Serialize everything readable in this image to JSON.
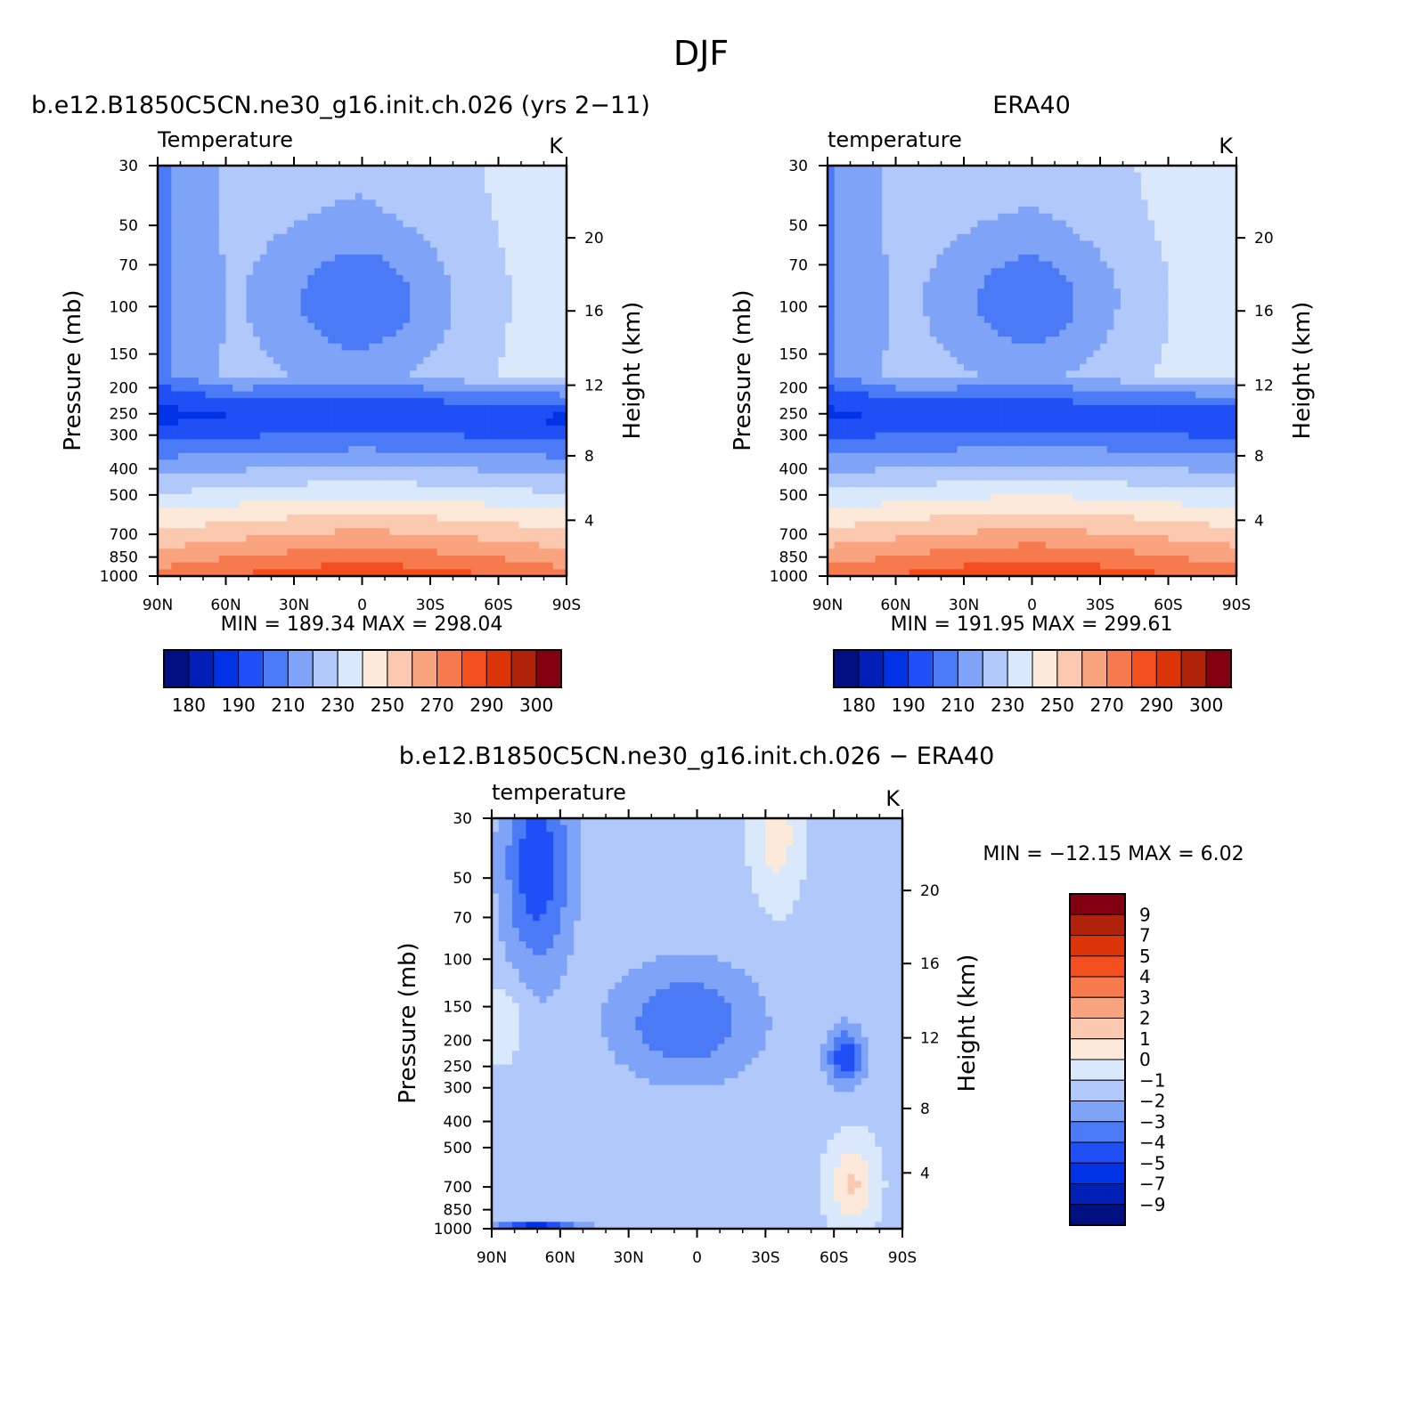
{
  "page": {
    "title": "DJF"
  },
  "legend": {
    "abs_colors": [
      "#000f82",
      "#0020b5",
      "#0032e6",
      "#1f4ff5",
      "#4a7af5",
      "#7fa4f7",
      "#b0c8fa",
      "#d9e9fb",
      "#fde9d9",
      "#fbc8b0",
      "#f9a47f",
      "#f77a4f",
      "#f24e1f",
      "#db3409",
      "#b0220a",
      "#82000f"
    ],
    "abs_labels": [
      "180",
      "190",
      "210",
      "230",
      "250",
      "270",
      "290",
      "300"
    ],
    "diff_colors": [
      "#000f82",
      "#0020b5",
      "#0032e6",
      "#1f4ff5",
      "#4a7af5",
      "#7fa4f7",
      "#b0c8fa",
      "#d9e9fb",
      "#fde9d9",
      "#fbc8b0",
      "#f9a47f",
      "#f77a4f",
      "#f24e1f",
      "#db3409",
      "#b0220a",
      "#82000f"
    ],
    "diff_labels": [
      "9",
      "7",
      "5",
      "4",
      "3",
      "2",
      "1",
      "0",
      "−1",
      "−2",
      "−3",
      "−4",
      "−5",
      "−7",
      "−9"
    ]
  },
  "chart_data": [
    {
      "type": "heatmap",
      "title": "b.e12.B1850C5CN.ne30_g16.init.ch.026 (yrs 2−11)",
      "subtitle_left": "Temperature",
      "subtitle_right": "K",
      "ylabel": "Pressure  (mb)",
      "y2label": "Height  (km)",
      "x_ticks": [
        "90N",
        "60N",
        "30N",
        "0",
        "30S",
        "60S",
        "90S"
      ],
      "y_ticks": [
        "30",
        "50",
        "70",
        "100",
        "150",
        "200",
        "250",
        "300",
        "400",
        "500",
        "700",
        "850",
        "1000"
      ],
      "y2_ticks": [
        "20",
        "16",
        "12",
        "8",
        "4"
      ],
      "stats": "MIN  =  189.34   MAX  =  298.04",
      "min": 189.34,
      "max": 298.04,
      "field": "model",
      "legend_kind": "abs"
    },
    {
      "type": "heatmap",
      "title": "ERA40",
      "subtitle_left": "temperature",
      "subtitle_right": "K",
      "ylabel": "Pressure  (mb)",
      "y2label": "Height  (km)",
      "x_ticks": [
        "90N",
        "60N",
        "30N",
        "0",
        "30S",
        "60S",
        "90S"
      ],
      "y_ticks": [
        "30",
        "50",
        "70",
        "100",
        "150",
        "200",
        "250",
        "300",
        "400",
        "500",
        "700",
        "850",
        "1000"
      ],
      "y2_ticks": [
        "20",
        "16",
        "12",
        "8",
        "4"
      ],
      "stats": "MIN  =  191.95   MAX  =  299.61",
      "min": 191.95,
      "max": 299.61,
      "field": "obs",
      "legend_kind": "abs"
    },
    {
      "type": "heatmap",
      "title": "b.e12.B1850C5CN.ne30_g16.init.ch.026  −  ERA40",
      "subtitle_left": "temperature",
      "subtitle_right": "K",
      "ylabel": "Pressure  (mb)",
      "y2label": "Height  (km)",
      "x_ticks": [
        "90N",
        "60N",
        "30N",
        "0",
        "30S",
        "60S",
        "90S"
      ],
      "y_ticks": [
        "30",
        "50",
        "70",
        "100",
        "150",
        "200",
        "250",
        "300",
        "400",
        "500",
        "700",
        "850",
        "1000"
      ],
      "y2_ticks": [
        "20",
        "16",
        "12",
        "8",
        "4"
      ],
      "stats": "MIN  =  −12.15    MAX  =     6.02",
      "min": -12.15,
      "max": 6.02,
      "field": "diff",
      "legend_kind": "diff"
    }
  ]
}
